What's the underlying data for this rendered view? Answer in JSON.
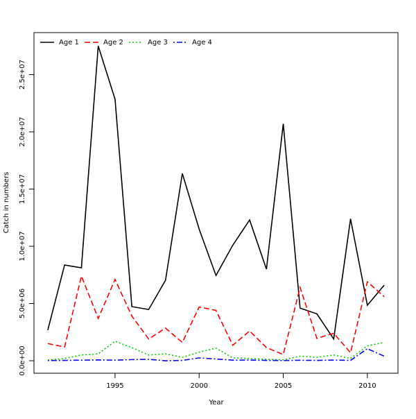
{
  "chart_data": {
    "type": "line",
    "x_label": "Year",
    "y_label": "Catch in numbers",
    "x": [
      1991,
      1992,
      1993,
      1994,
      1995,
      1996,
      1997,
      1998,
      1999,
      2000,
      2001,
      2002,
      2003,
      2004,
      2005,
      2006,
      2007,
      2008,
      2009,
      2010,
      2011
    ],
    "series": [
      {
        "name": "Age 1",
        "color": "#000000",
        "line_style": "solid",
        "values": [
          2670000,
          8360000,
          8120000,
          27500000,
          22850000,
          4730000,
          4480000,
          7030000,
          16360000,
          11500000,
          7450000,
          10100000,
          12300000,
          8000000,
          20700000,
          4600000,
          4100000,
          1900000,
          12400000,
          4850000,
          6600000
        ]
      },
      {
        "name": "Age 2",
        "color": "#ff0000",
        "line_style": "dashed",
        "values": [
          1500000,
          1200000,
          7400000,
          3700000,
          7100000,
          3900000,
          1900000,
          2850000,
          1600000,
          4700000,
          4400000,
          1350000,
          2600000,
          1150000,
          550000,
          6400000,
          1950000,
          2400000,
          700000,
          6900000,
          5600000
        ]
      },
      {
        "name": "Age 3",
        "color": "#00cd00",
        "line_style": "dotted",
        "values": [
          50000,
          200000,
          500000,
          600000,
          1700000,
          1150000,
          500000,
          600000,
          300000,
          750000,
          1100000,
          250000,
          200000,
          120000,
          80000,
          400000,
          300000,
          500000,
          200000,
          1300000,
          1600000
        ]
      },
      {
        "name": "Age 4",
        "color": "#0000ff",
        "line_style": "dotdash",
        "values": [
          20000,
          30000,
          50000,
          70000,
          50000,
          100000,
          120000,
          0,
          30000,
          250000,
          150000,
          50000,
          60000,
          30000,
          20000,
          40000,
          30000,
          60000,
          30000,
          1050000,
          400000
        ]
      }
    ],
    "xlim": [
      1990.18,
      2011.82
    ],
    "xticks": [
      1995,
      2000,
      2005,
      2010
    ],
    "ylim": [
      -1090000,
      28670000
    ],
    "yticks": [
      {
        "value": 0,
        "label": "0.0e+00"
      },
      {
        "value": 5000000,
        "label": "5.0e+06"
      },
      {
        "value": 10000000,
        "label": "1.0e+07"
      },
      {
        "value": 15000000,
        "label": "1.5e+07"
      },
      {
        "value": 20000000,
        "label": "2.0e+07"
      },
      {
        "value": 25000000,
        "label": "2.5e+07"
      }
    ],
    "legend": "top-left"
  }
}
